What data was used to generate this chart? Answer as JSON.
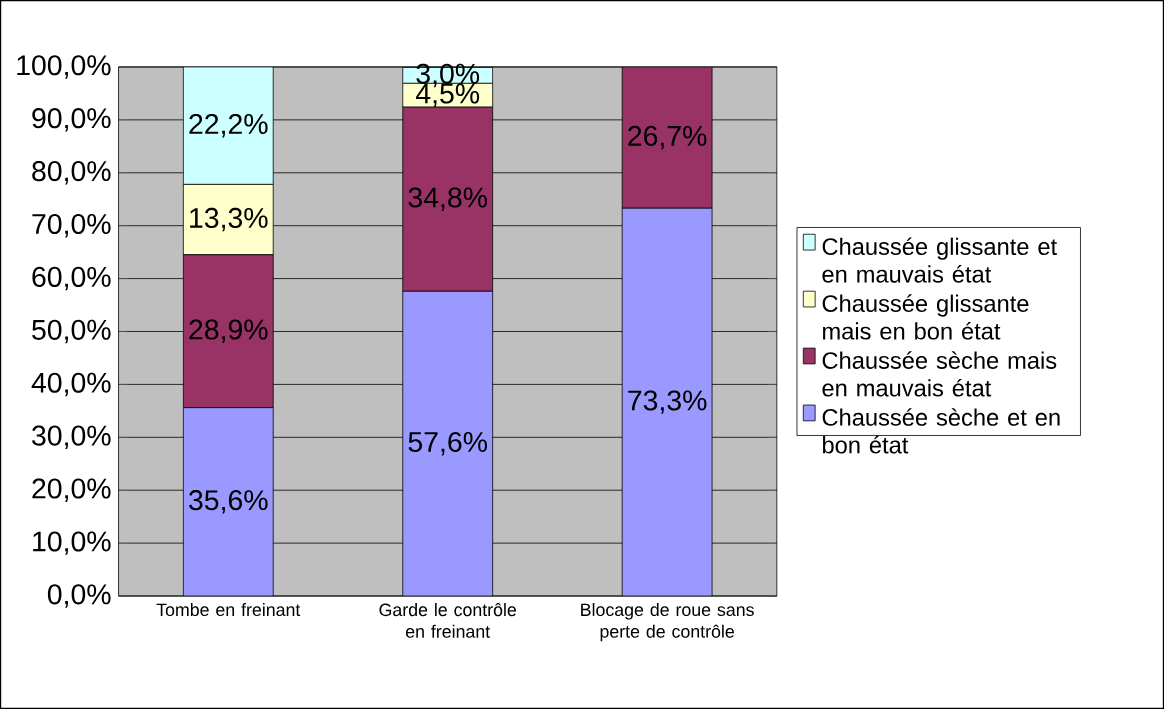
{
  "chart_data": {
    "type": "bar",
    "stacked": true,
    "categories": [
      "Tombe en freinant",
      "Garde le contrôle en freinant",
      "Blocage de roue sans perte de contrôle"
    ],
    "series": [
      {
        "name": "Chaussée sèche et en bon état",
        "color": "#9999ff",
        "values": [
          35.6,
          57.6,
          73.3
        ],
        "value_labels": [
          "35,6%",
          "57,6%",
          "73,3%"
        ]
      },
      {
        "name": "Chaussée sèche mais en mauvais état",
        "color": "#993366",
        "values": [
          28.9,
          34.8,
          26.7
        ],
        "value_labels": [
          "28,9%",
          "34,8%",
          "26,7%"
        ]
      },
      {
        "name": "Chaussée glissante mais en bon état",
        "color": "#ffffcc",
        "values": [
          13.3,
          4.5,
          null
        ],
        "value_labels": [
          "13,3%",
          "4,5%",
          null
        ]
      },
      {
        "name": "Chaussée glissante et en mauvais état",
        "color": "#ccffff",
        "values": [
          22.2,
          3.0,
          null
        ],
        "value_labels": [
          "22,2%",
          "3,0%",
          null
        ]
      }
    ],
    "ylim": [
      0,
      100
    ],
    "yticks": [
      {
        "value": 0,
        "label": "0,0%"
      },
      {
        "value": 10,
        "label": "10,0%"
      },
      {
        "value": 20,
        "label": "20,0%"
      },
      {
        "value": 30,
        "label": "30,0%"
      },
      {
        "value": 40,
        "label": "40,0%"
      },
      {
        "value": 50,
        "label": "50,0%"
      },
      {
        "value": 60,
        "label": "60,0%"
      },
      {
        "value": 70,
        "label": "70,0%"
      },
      {
        "value": 80,
        "label": "80,0%"
      },
      {
        "value": 90,
        "label": "90,0%"
      },
      {
        "value": 100,
        "label": "100,0%"
      }
    ],
    "grid": "y",
    "legend": "right"
  }
}
